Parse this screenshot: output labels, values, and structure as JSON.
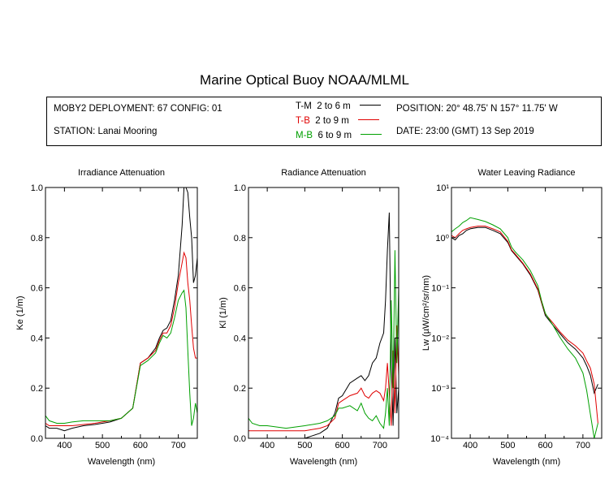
{
  "title": "Marine Optical Buoy NOAA/MLML",
  "info": {
    "deployment": "MOBY2 DEPLOYMENT: 67 CONFIG: 01",
    "station": "STATION: Lanai Mooring",
    "position": "POSITION: 20° 48.75' N   157° 11.75' W",
    "date": "DATE: 23:00 (GMT) 13 Sep 2019"
  },
  "legend": [
    {
      "label": "T-M",
      "range": "2 to 6  m",
      "color": "#000000"
    },
    {
      "label": "T-B",
      "range": "2 to 9  m",
      "color": "#e00000"
    },
    {
      "label": "M-B",
      "range": "6 to 9  m",
      "color": "#00a000"
    }
  ],
  "chart_data": [
    {
      "type": "line",
      "title": "Irradiance Attenuation",
      "xlabel": "Wavelength (nm)",
      "ylabel": "Ke  (1/m)",
      "xlim": [
        350,
        750
      ],
      "ylim": [
        0,
        1.0
      ],
      "xticks": [
        "400",
        "500",
        "600",
        "700"
      ],
      "yticks": [
        "0.0",
        "0.2",
        "0.4",
        "0.6",
        "0.8",
        "1.0"
      ],
      "series": [
        {
          "name": "T-M",
          "color": "#000000",
          "x": [
            350,
            360,
            380,
            400,
            420,
            450,
            480,
            500,
            520,
            550,
            580,
            600,
            620,
            640,
            650,
            660,
            670,
            680,
            690,
            700,
            710,
            715,
            720,
            725,
            730,
            735,
            740,
            745,
            750
          ],
          "y": [
            0.05,
            0.04,
            0.04,
            0.03,
            0.04,
            0.05,
            0.055,
            0.06,
            0.065,
            0.08,
            0.12,
            0.3,
            0.32,
            0.36,
            0.4,
            0.43,
            0.44,
            0.47,
            0.55,
            0.65,
            0.85,
            1.0,
            1.0,
            0.98,
            0.88,
            0.8,
            0.62,
            0.65,
            0.72
          ]
        },
        {
          "name": "T-B",
          "color": "#e00000",
          "x": [
            350,
            360,
            380,
            400,
            420,
            450,
            480,
            500,
            520,
            550,
            580,
            600,
            620,
            640,
            650,
            660,
            670,
            680,
            690,
            700,
            710,
            715,
            720,
            725,
            730,
            735,
            740,
            745,
            750
          ],
          "y": [
            0.06,
            0.05,
            0.05,
            0.05,
            0.05,
            0.055,
            0.06,
            0.065,
            0.07,
            0.08,
            0.12,
            0.3,
            0.32,
            0.35,
            0.39,
            0.42,
            0.42,
            0.45,
            0.52,
            0.62,
            0.7,
            0.74,
            0.72,
            0.62,
            0.55,
            0.45,
            0.36,
            0.32,
            0.32
          ]
        },
        {
          "name": "M-B",
          "color": "#00a000",
          "x": [
            350,
            360,
            380,
            400,
            420,
            450,
            480,
            500,
            520,
            550,
            580,
            600,
            620,
            640,
            650,
            660,
            670,
            680,
            690,
            700,
            710,
            715,
            720,
            725,
            730,
            735,
            740,
            745,
            750
          ],
          "y": [
            0.09,
            0.07,
            0.06,
            0.06,
            0.065,
            0.07,
            0.07,
            0.07,
            0.07,
            0.08,
            0.12,
            0.29,
            0.31,
            0.34,
            0.38,
            0.41,
            0.4,
            0.42,
            0.48,
            0.55,
            0.58,
            0.59,
            0.52,
            0.35,
            0.18,
            0.05,
            0.08,
            0.14,
            0.1
          ]
        }
      ]
    },
    {
      "type": "line",
      "title": "Radiance Attenuation",
      "xlabel": "Wavelength (nm)",
      "ylabel": "Kl  (1/m)",
      "xlim": [
        350,
        750
      ],
      "ylim": [
        0,
        1.0
      ],
      "xticks": [
        "400",
        "500",
        "600",
        "700"
      ],
      "yticks": [
        "0.0",
        "0.2",
        "0.4",
        "0.6",
        "0.8",
        "1.0"
      ],
      "series": [
        {
          "name": "T-M",
          "color": "#000000",
          "x": [
            350,
            380,
            400,
            450,
            500,
            540,
            560,
            580,
            590,
            600,
            620,
            640,
            650,
            660,
            670,
            680,
            690,
            700,
            710,
            715,
            720,
            725,
            730,
            735,
            740,
            745,
            750
          ],
          "y": [
            0.0,
            0.0,
            0.0,
            0.0,
            0.0,
            0.02,
            0.04,
            0.1,
            0.16,
            0.17,
            0.22,
            0.24,
            0.25,
            0.23,
            0.25,
            0.3,
            0.32,
            0.38,
            0.42,
            0.55,
            0.75,
            0.9,
            0.3,
            0.05,
            0.4,
            0.1,
            0.2
          ]
        },
        {
          "name": "T-B",
          "color": "#e00000",
          "x": [
            350,
            380,
            400,
            450,
            500,
            540,
            560,
            580,
            590,
            600,
            620,
            640,
            650,
            660,
            670,
            680,
            690,
            700,
            710,
            715,
            720,
            725,
            730,
            735,
            740,
            745,
            750
          ],
          "y": [
            0.03,
            0.03,
            0.03,
            0.03,
            0.03,
            0.04,
            0.05,
            0.08,
            0.14,
            0.15,
            0.17,
            0.18,
            0.2,
            0.17,
            0.16,
            0.18,
            0.19,
            0.18,
            0.15,
            0.2,
            0.3,
            0.18,
            0.05,
            0.35,
            0.1,
            0.45,
            0.25
          ]
        },
        {
          "name": "M-B",
          "color": "#00a000",
          "x": [
            350,
            360,
            380,
            400,
            450,
            500,
            540,
            560,
            580,
            590,
            600,
            620,
            640,
            650,
            660,
            670,
            680,
            690,
            700,
            710,
            715,
            720,
            725,
            730,
            735,
            740,
            745,
            750
          ],
          "y": [
            0.08,
            0.06,
            0.05,
            0.05,
            0.04,
            0.05,
            0.06,
            0.07,
            0.09,
            0.12,
            0.12,
            0.13,
            0.11,
            0.14,
            0.1,
            0.08,
            0.07,
            0.09,
            0.06,
            0.04,
            0.1,
            0.2,
            0.05,
            0.55,
            0.2,
            0.75,
            0.3,
            0.6
          ]
        }
      ]
    },
    {
      "type": "line",
      "title": "Water Leaving Radiance",
      "xlabel": "Wavelength (nm)",
      "ylabel": "Lw  (µW/cm²/sr/nm)",
      "xlim": [
        350,
        750
      ],
      "ylim": [
        0.0001,
        10
      ],
      "yscale": "log",
      "xticks": [
        "400",
        "500",
        "600",
        "700"
      ],
      "yticks": [
        "10⁻⁴",
        "10⁻³",
        "10⁻²",
        "10⁻¹",
        "10⁰",
        "10¹"
      ],
      "series": [
        {
          "name": "T-M",
          "color": "#000000",
          "x": [
            350,
            360,
            370,
            380,
            390,
            400,
            420,
            440,
            460,
            480,
            500,
            510,
            520,
            540,
            560,
            580,
            590,
            600,
            620,
            640,
            660,
            680,
            700,
            710,
            720,
            730,
            740
          ],
          "y": [
            1.0,
            0.9,
            1.1,
            1.2,
            1.4,
            1.5,
            1.6,
            1.6,
            1.4,
            1.2,
            0.8,
            0.55,
            0.45,
            0.3,
            0.18,
            0.09,
            0.05,
            0.028,
            0.018,
            0.012,
            0.008,
            0.006,
            0.004,
            0.0028,
            0.0018,
            0.0008,
            0.0012
          ]
        },
        {
          "name": "T-B",
          "color": "#e00000",
          "x": [
            350,
            360,
            370,
            380,
            390,
            400,
            420,
            440,
            460,
            480,
            500,
            510,
            520,
            540,
            560,
            580,
            590,
            600,
            620,
            640,
            660,
            680,
            700,
            710,
            720,
            730,
            740
          ],
          "y": [
            1.1,
            1.0,
            1.2,
            1.4,
            1.5,
            1.6,
            1.7,
            1.7,
            1.5,
            1.3,
            0.85,
            0.57,
            0.47,
            0.31,
            0.19,
            0.095,
            0.052,
            0.03,
            0.02,
            0.013,
            0.009,
            0.007,
            0.005,
            0.0035,
            0.0025,
            0.0012,
            0.0002
          ]
        },
        {
          "name": "M-B",
          "color": "#00a000",
          "x": [
            350,
            360,
            370,
            380,
            390,
            400,
            420,
            440,
            460,
            480,
            500,
            510,
            520,
            540,
            560,
            580,
            590,
            600,
            620,
            640,
            660,
            680,
            700,
            710,
            720,
            730,
            740
          ],
          "y": [
            1.3,
            1.5,
            1.7,
            2.0,
            2.2,
            2.5,
            2.3,
            2.1,
            1.8,
            1.5,
            1.0,
            0.65,
            0.52,
            0.36,
            0.22,
            0.11,
            0.055,
            0.031,
            0.018,
            0.01,
            0.006,
            0.004,
            0.002,
            0.0009,
            0.0003,
            0.0001,
            0.0002
          ]
        }
      ]
    }
  ]
}
